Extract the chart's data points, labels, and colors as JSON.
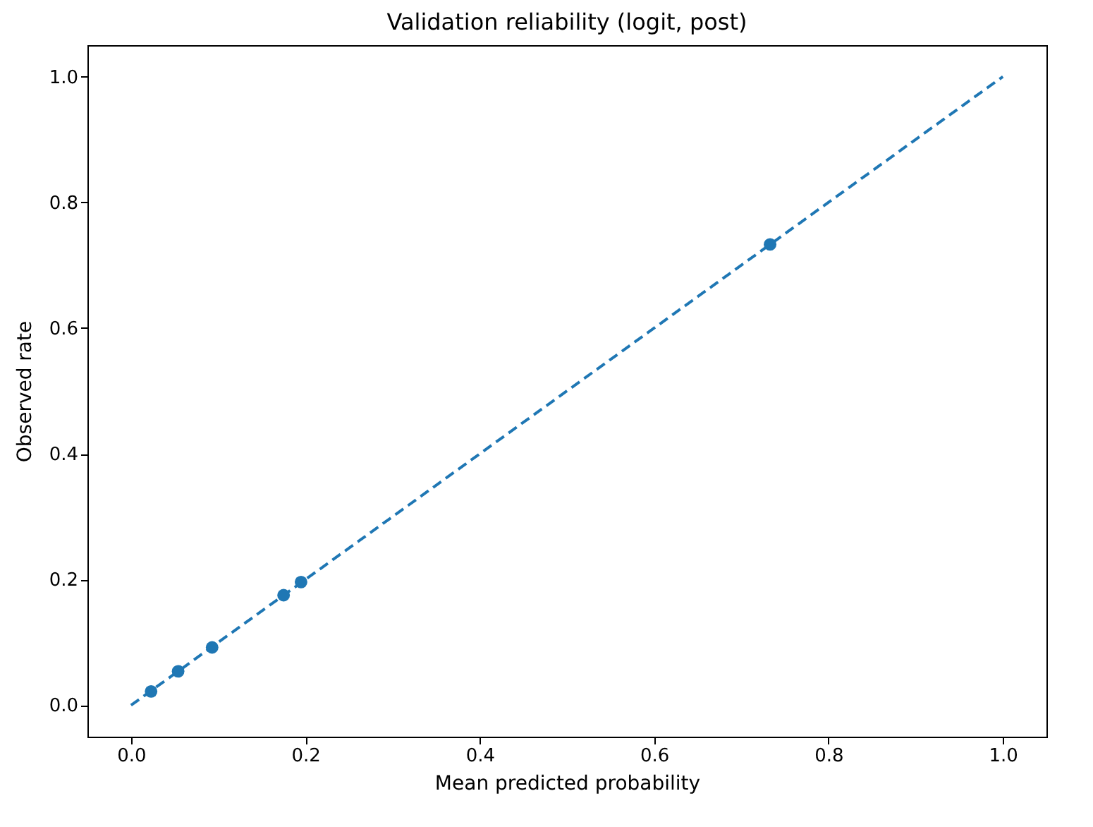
{
  "chart_data": {
    "type": "scatter",
    "title": "Validation reliability (logit, post)",
    "xlabel": "Mean predicted probability",
    "ylabel": "Observed rate",
    "xlim": [
      -0.05,
      1.05
    ],
    "ylim": [
      -0.05,
      1.05
    ],
    "xticks": [
      {
        "value": 0,
        "label": "0.0"
      },
      {
        "value": 0.2,
        "label": "0.2"
      },
      {
        "value": 0.4,
        "label": "0.4"
      },
      {
        "value": 0.6,
        "label": "0.6"
      },
      {
        "value": 0.8,
        "label": "0.8"
      },
      {
        "value": 1,
        "label": "1.0"
      }
    ],
    "yticks": [
      {
        "value": 0,
        "label": "0.0"
      },
      {
        "value": 0.2,
        "label": "0.2"
      },
      {
        "value": 0.4,
        "label": "0.4"
      },
      {
        "value": 0.6,
        "label": "0.6"
      },
      {
        "value": 0.8,
        "label": "0.8"
      },
      {
        "value": 1,
        "label": "1.0"
      }
    ],
    "grid": false,
    "series": [
      {
        "type": "line",
        "color": "#1f77b4",
        "line_style": "dashed",
        "x": [
          0,
          1
        ],
        "values": [
          0,
          1
        ]
      },
      {
        "color": "#1f77b4",
        "marker": "circle",
        "x": [
          0.023,
          0.054,
          0.093,
          0.175,
          0.195,
          0.733
        ],
        "values": [
          0.022,
          0.054,
          0.092,
          0.175,
          0.196,
          0.733
        ]
      }
    ]
  }
}
